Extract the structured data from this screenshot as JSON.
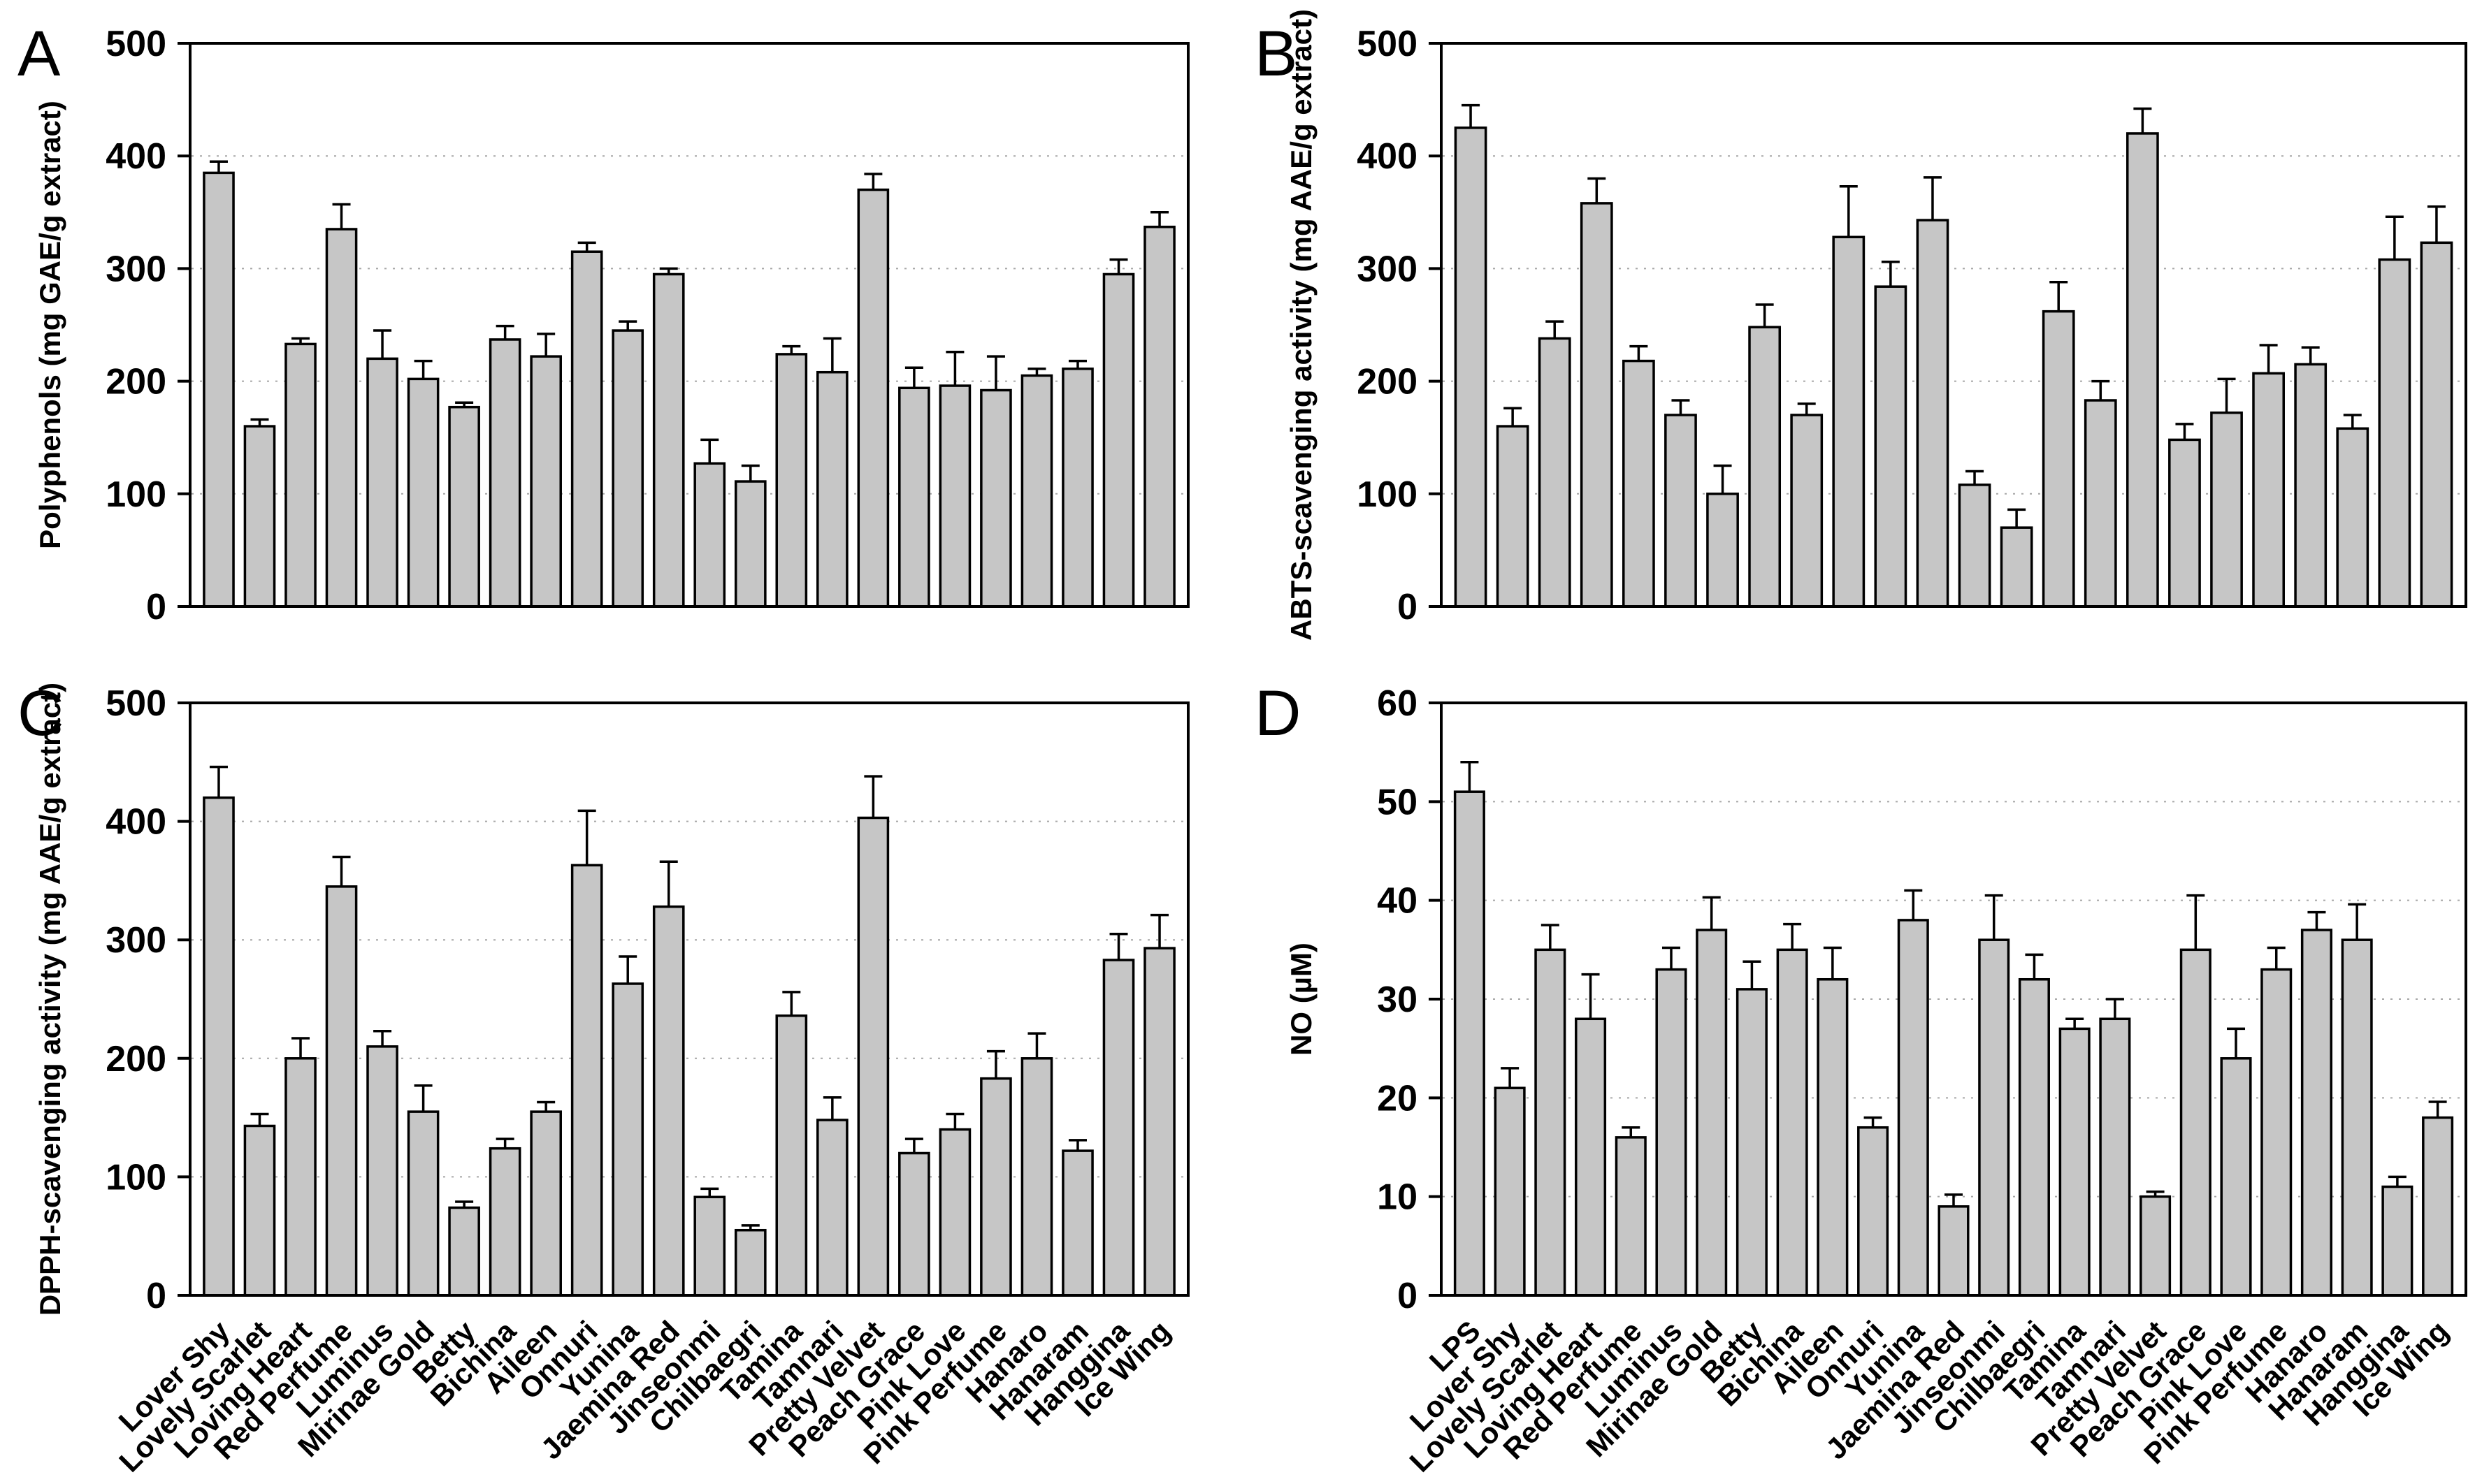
{
  "figure": {
    "kind": "four-panel bar chart figure",
    "background": "#ffffff",
    "bar_fill": "#c6c6c6",
    "bar_stroke": "#000000",
    "grid_style": "dotted horizontal gridlines"
  },
  "chart_data": [
    {
      "type": "bar",
      "panel": "A",
      "title": "",
      "xlabel": "",
      "ylabel": "Polyphenols (mg GAE/g extract)",
      "ylim": [
        0,
        500
      ],
      "yticks": [
        0,
        100,
        200,
        300,
        400,
        500
      ],
      "legend": "none",
      "grid": "horizontal-dotted",
      "show_x_labels": false,
      "categories": [
        "Lover Shy",
        "Lovely Scarlet",
        "Loving Heart",
        "Red Perfume",
        "Luminus",
        "Mirinae Gold",
        "Betty",
        "Bichina",
        "Aileen",
        "Onnuri",
        "Yunina",
        "Jaemina Red",
        "Jinseonmi",
        "Chilbaegri",
        "Tamina",
        "Tamnari",
        "Pretty Velvet",
        "Peach Grace",
        "Pink Love",
        "Pink Perfume",
        "Hanaro",
        "Hanaram",
        "Hanggina",
        "Ice Wing"
      ],
      "values": [
        385,
        160,
        233,
        335,
        220,
        202,
        177,
        237,
        222,
        315,
        245,
        295,
        127,
        111,
        224,
        208,
        370,
        194,
        196,
        192,
        205,
        211,
        295,
        337
      ],
      "errors": [
        10,
        6,
        5,
        22,
        25,
        16,
        4,
        12,
        20,
        8,
        8,
        5,
        21,
        14,
        7,
        30,
        14,
        18,
        30,
        30,
        6,
        7,
        13,
        13
      ]
    },
    {
      "type": "bar",
      "panel": "B",
      "title": "",
      "xlabel": "",
      "ylabel": "ABTS-scavenging activity (mg AAE/g extract)",
      "ylim": [
        0,
        500
      ],
      "yticks": [
        0,
        100,
        200,
        300,
        400,
        500
      ],
      "legend": "none",
      "grid": "horizontal-dotted",
      "show_x_labels": false,
      "categories": [
        "Lover Shy",
        "Lovely Scarlet",
        "Loving Heart",
        "Red Perfume",
        "Luminus",
        "Mirinae Gold",
        "Betty",
        "Bichina",
        "Aileen",
        "Onnuri",
        "Yunina",
        "Jaemina Red",
        "Jinseonmi",
        "Chilbaegri",
        "Tamina",
        "Tamnari",
        "Pretty Velvet",
        "Peach Grace",
        "Pink Love",
        "Pink Perfume",
        "Hanaro",
        "Hanaram",
        "Hanggina",
        "Ice Wing"
      ],
      "values": [
        425,
        160,
        238,
        358,
        218,
        170,
        100,
        248,
        170,
        328,
        284,
        343,
        108,
        70,
        262,
        183,
        420,
        148,
        172,
        207,
        215,
        158,
        308,
        323
      ],
      "errors": [
        20,
        16,
        15,
        22,
        13,
        13,
        25,
        20,
        10,
        45,
        22,
        38,
        12,
        16,
        26,
        17,
        22,
        14,
        30,
        25,
        15,
        12,
        38,
        32
      ]
    },
    {
      "type": "bar",
      "panel": "C",
      "title": "",
      "xlabel": "",
      "ylabel": "DPPH-scavenging activity (mg AAE/g extract)",
      "ylim": [
        0,
        500
      ],
      "yticks": [
        0,
        100,
        200,
        300,
        400,
        500
      ],
      "legend": "none",
      "grid": "horizontal-dotted",
      "show_x_labels": true,
      "categories": [
        "Lover Shy",
        "Lovely Scarlet",
        "Loving Heart",
        "Red Perfume",
        "Luminus",
        "Mirinae Gold",
        "Betty",
        "Bichina",
        "Aileen",
        "Onnuri",
        "Yunina",
        "Jaemina Red",
        "Jinseonmi",
        "Chilbaegri",
        "Tamina",
        "Tamnari",
        "Pretty Velvet",
        "Peach Grace",
        "Pink Love",
        "Pink Perfume",
        "Hanaro",
        "Hanaram",
        "Hanggina",
        "Ice Wing"
      ],
      "values": [
        420,
        143,
        200,
        345,
        210,
        155,
        74,
        124,
        155,
        363,
        263,
        328,
        83,
        55,
        236,
        148,
        403,
        120,
        140,
        183,
        200,
        122,
        283,
        293
      ],
      "errors": [
        26,
        10,
        17,
        25,
        13,
        22,
        5,
        8,
        8,
        46,
        23,
        38,
        7,
        4,
        20,
        19,
        35,
        12,
        13,
        23,
        21,
        9,
        22,
        28
      ]
    },
    {
      "type": "bar",
      "panel": "D",
      "title": "",
      "xlabel": "",
      "ylabel": "NO (µM)",
      "ylim": [
        0,
        60
      ],
      "yticks": [
        0,
        10,
        20,
        30,
        40,
        50,
        60
      ],
      "legend": "none",
      "grid": "horizontal-dotted",
      "show_x_labels": true,
      "categories": [
        "LPS",
        "Lover Shy",
        "Lovely Scarlet",
        "Loving Heart",
        "Red Perfume",
        "Luminus",
        "Mirinae Gold",
        "Betty",
        "Bichina",
        "Aileen",
        "Onnuri",
        "Yunina",
        "Jaemina Red",
        "Jinseonmi",
        "Chilbaegri",
        "Tamina",
        "Tamnari",
        "Pretty Velvet",
        "Peach Grace",
        "Pink Love",
        "Pink Perfume",
        "Hanaro",
        "Hanaram",
        "Hanggina",
        "Ice Wing"
      ],
      "values": [
        51,
        21,
        35,
        28,
        16,
        33,
        37,
        31,
        35,
        32,
        17,
        38,
        9,
        36,
        32,
        27,
        28,
        10,
        35,
        24,
        33,
        37,
        36,
        11,
        18
      ],
      "errors": [
        3,
        2,
        2.5,
        4.5,
        1,
        2.2,
        3.3,
        2.8,
        2.6,
        3.2,
        1,
        3,
        1.2,
        4.5,
        2.5,
        1,
        2,
        0.5,
        5.5,
        3,
        2.2,
        1.8,
        3.6,
        1,
        1.6
      ]
    }
  ]
}
